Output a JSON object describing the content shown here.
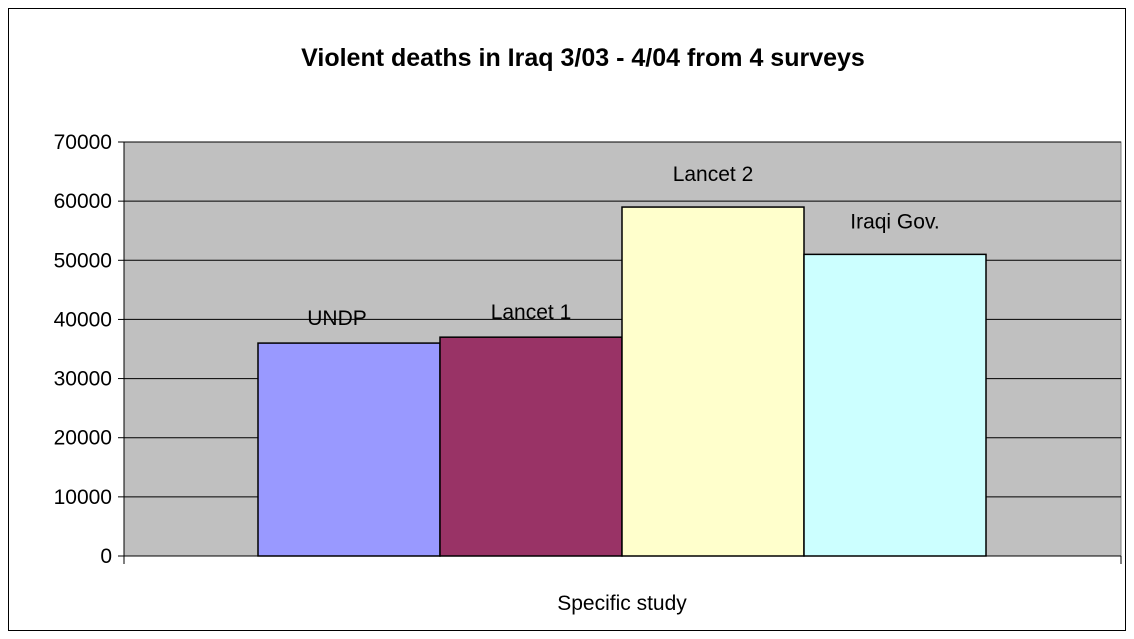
{
  "chart_data": {
    "type": "bar",
    "title": "Violent deaths in Iraq 3/03 - 4/04 from 4 surveys",
    "xlabel": "Specific study",
    "ylabel": "",
    "ylim": [
      0,
      70000
    ],
    "yticks": [
      "0",
      "10000",
      "20000",
      "30000",
      "40000",
      "50000",
      "60000",
      "70000"
    ],
    "grid": true,
    "legend": "none",
    "series": [
      {
        "label": "UNDP",
        "value": 36000,
        "color": "#9999ff"
      },
      {
        "label": "Lancet 1",
        "value": 37000,
        "color": "#993366"
      },
      {
        "label": "Lancet 2",
        "value": 59000,
        "color": "#ffffcc"
      },
      {
        "label": "Iraqi Gov.",
        "value": 51000,
        "color": "#ccffff"
      }
    ],
    "plot_background": "#c0c0c0"
  }
}
